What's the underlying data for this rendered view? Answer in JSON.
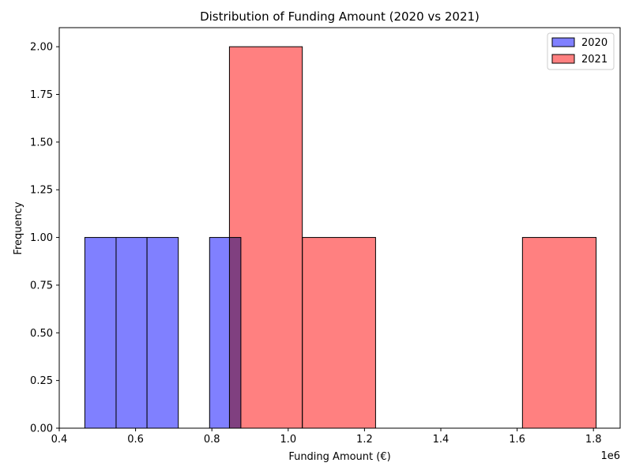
{
  "chart_data": {
    "type": "bar",
    "title": "Distribution of Funding Amount (2020 vs 2021)",
    "xlabel": "Funding Amount (€)",
    "ylabel": "Frequency",
    "x_offset_label": "1e6",
    "xlim": [
      0.4,
      1.87
    ],
    "ylim": [
      0,
      2.1
    ],
    "x_ticks": [
      0.4,
      0.6,
      0.8,
      1.0,
      1.2,
      1.4,
      1.6,
      1.8
    ],
    "x_tick_labels": [
      "0.4",
      "0.6",
      "0.8",
      "1.0",
      "1.2",
      "1.4",
      "1.6",
      "1.8"
    ],
    "y_ticks": [
      0,
      0.25,
      0.5,
      0.75,
      1.0,
      1.25,
      1.5,
      1.75,
      2.0
    ],
    "y_tick_labels": [
      "0.00",
      "0.25",
      "0.50",
      "0.75",
      "1.00",
      "1.25",
      "1.50",
      "1.75",
      "2.00"
    ],
    "legend_position": "top-right",
    "grid": false,
    "series": [
      {
        "name": "2020",
        "color": "#8080ff",
        "bins": [
          {
            "x0": 0.467,
            "x1": 0.549,
            "count": 1
          },
          {
            "x0": 0.549,
            "x1": 0.63,
            "count": 1
          },
          {
            "x0": 0.63,
            "x1": 0.712,
            "count": 1
          },
          {
            "x0": 0.712,
            "x1": 0.794,
            "count": 0
          },
          {
            "x0": 0.794,
            "x1": 0.876,
            "count": 1
          }
        ]
      },
      {
        "name": "2021",
        "color": "#ff8080",
        "bins": [
          {
            "x0": 0.846,
            "x1": 1.037,
            "count": 2
          },
          {
            "x0": 1.037,
            "x1": 1.229,
            "count": 1
          },
          {
            "x0": 1.229,
            "x1": 1.42,
            "count": 0
          },
          {
            "x0": 1.42,
            "x1": 1.614,
            "count": 0
          },
          {
            "x0": 1.614,
            "x1": 1.807,
            "count": 1
          }
        ]
      }
    ]
  }
}
